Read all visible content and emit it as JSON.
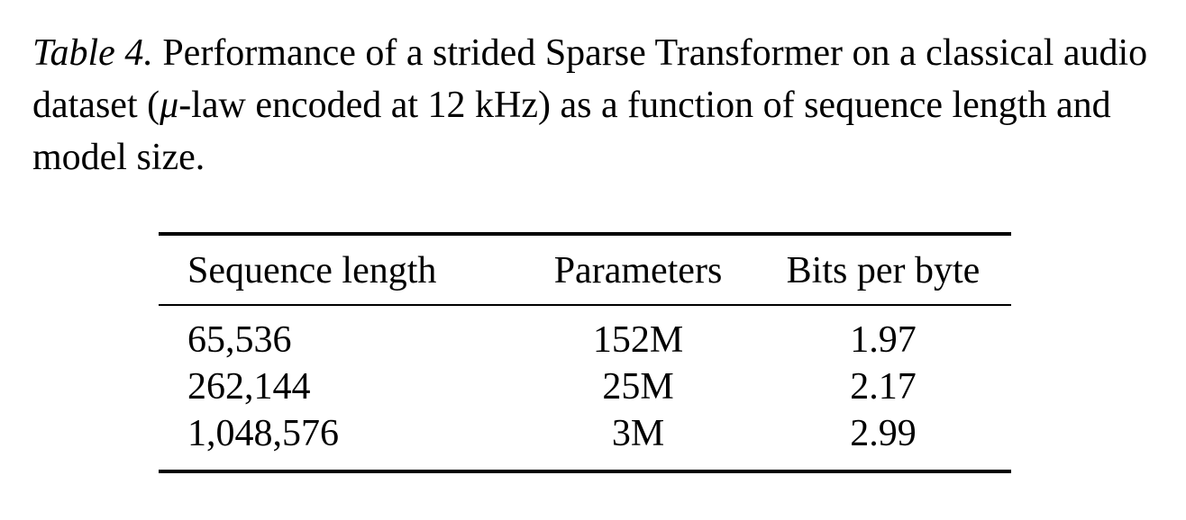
{
  "caption": {
    "label": "Table 4.",
    "text_before_mu": " Performance of a strided Sparse Transformer on a classical audio dataset (",
    "mu": "μ",
    "text_after_mu": "-law encoded at 12 kHz) as a function of sequence length and model size."
  },
  "table": {
    "headers": [
      "Sequence length",
      "Parameters",
      "Bits per byte"
    ],
    "rows": [
      [
        "65,536",
        "152M",
        "1.97"
      ],
      [
        "262,144",
        "25M",
        "2.17"
      ],
      [
        "1,048,576",
        "3M",
        "2.99"
      ]
    ]
  }
}
